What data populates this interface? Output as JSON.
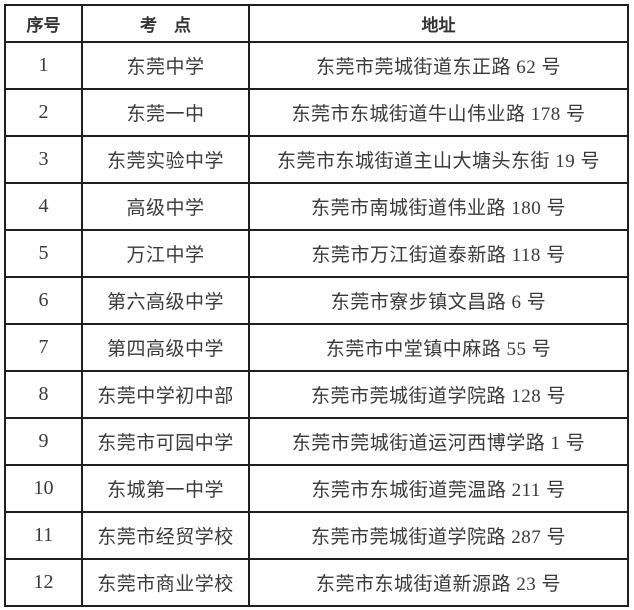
{
  "colors": {
    "border": "#1f1f1f",
    "text": "#3a3a3a",
    "background": "#fefefe"
  },
  "table": {
    "headers": [
      "序号",
      "考　点",
      "地址"
    ],
    "rows": [
      {
        "num": "1",
        "site": "东莞中学",
        "address": "东莞市莞城街道东正路 62 号"
      },
      {
        "num": "2",
        "site": "东莞一中",
        "address": "东莞市东城街道牛山伟业路 178 号"
      },
      {
        "num": "3",
        "site": "东莞实验中学",
        "address": "东莞市东城街道主山大塘头东街 19 号"
      },
      {
        "num": "4",
        "site": "高级中学",
        "address": "东莞市南城街道伟业路 180 号"
      },
      {
        "num": "5",
        "site": "万江中学",
        "address": "东莞市万江街道泰新路 118 号"
      },
      {
        "num": "6",
        "site": "第六高级中学",
        "address": "东莞市寮步镇文昌路 6 号"
      },
      {
        "num": "7",
        "site": "第四高级中学",
        "address": "东莞市中堂镇中麻路 55 号"
      },
      {
        "num": "8",
        "site": "东莞中学初中部",
        "address": "东莞市莞城街道学院路 128 号"
      },
      {
        "num": "9",
        "site": "东莞市可园中学",
        "address": "东莞市莞城街道运河西博学路 1 号"
      },
      {
        "num": "10",
        "site": "东城第一中学",
        "address": "东莞市东城街道莞温路 211 号"
      },
      {
        "num": "11",
        "site": "东莞市经贸学校",
        "address": "东莞市莞城街道学院路 287 号"
      },
      {
        "num": "12",
        "site": "东莞市商业学校",
        "address": "东莞市东城街道新源路 23 号"
      }
    ]
  }
}
